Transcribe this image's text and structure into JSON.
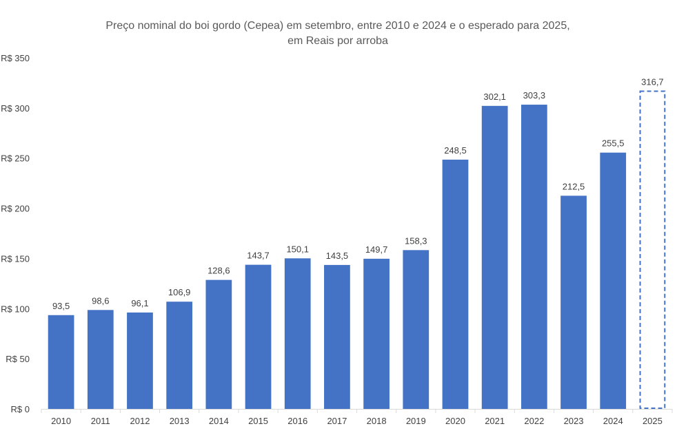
{
  "chart_data": {
    "type": "bar",
    "title_lines": [
      "Preço nominal do boi gordo (Cepea) em setembro, entre 2010 e 2024 e o esperado para 2025,",
      "em Reais por arroba"
    ],
    "categories": [
      "2010",
      "2011",
      "2012",
      "2013",
      "2014",
      "2015",
      "2016",
      "2017",
      "2018",
      "2019",
      "2020",
      "2021",
      "2022",
      "2023",
      "2024",
      "2025"
    ],
    "values": [
      93.5,
      98.6,
      96.1,
      106.9,
      128.6,
      143.7,
      150.1,
      143.5,
      149.7,
      158.3,
      248.5,
      302.1,
      303.3,
      212.5,
      255.5,
      316.7
    ],
    "value_labels": [
      "93,5",
      "98,6",
      "96,1",
      "106,9",
      "128,6",
      "143,7",
      "150,1",
      "143,5",
      "149,7",
      "158,3",
      "248,5",
      "302,1",
      "303,3",
      "212,5",
      "255,5",
      "316,7"
    ],
    "projected": [
      false,
      false,
      false,
      false,
      false,
      false,
      false,
      false,
      false,
      false,
      false,
      false,
      false,
      false,
      false,
      true
    ],
    "y_ticks": [
      0,
      50,
      100,
      150,
      200,
      250,
      300,
      350
    ],
    "y_tick_labels": [
      "R$ 0",
      "R$ 50",
      "R$ 100",
      "R$ 150",
      "R$ 200",
      "R$ 250",
      "R$ 300",
      "R$ 350"
    ],
    "ylim": [
      0,
      350
    ],
    "xlabel": "",
    "ylabel": "",
    "grid": false,
    "bar_color": "#4472C4",
    "projected_color": "#4472C4",
    "axis_color": "#D9D9D9"
  }
}
